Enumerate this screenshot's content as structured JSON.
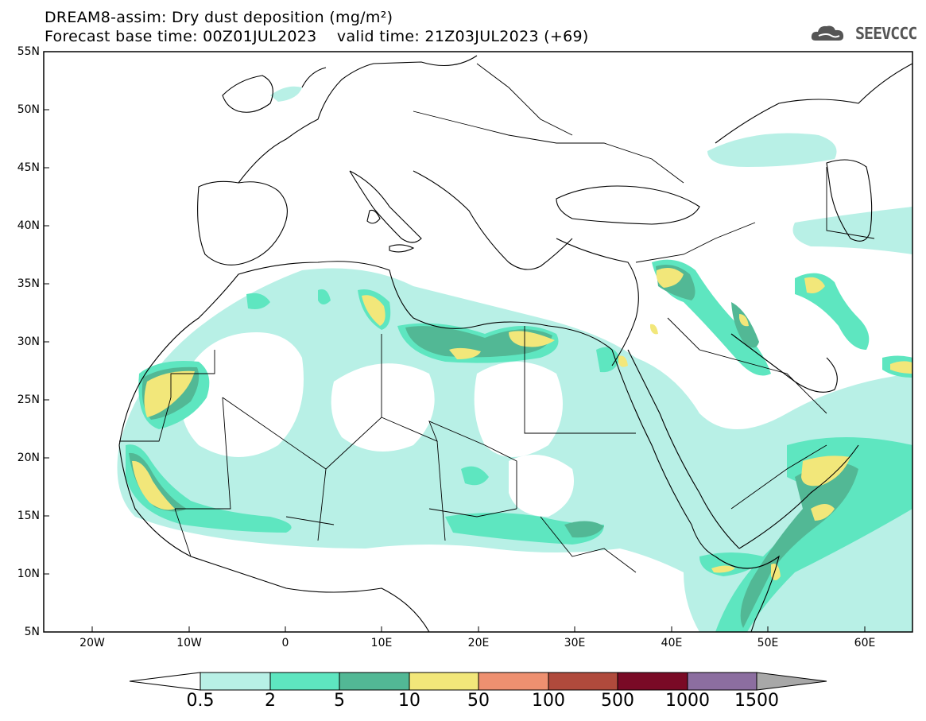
{
  "title": {
    "line1": "DREAM8-assim: Dry dust deposition (mg/m²)",
    "line2": "Forecast base time: 00Z01JUL2023    valid time: 21Z03JUL2023 (+69)"
  },
  "logo": {
    "text": "SEEVCCC",
    "icon": "cloud-icon"
  },
  "axes": {
    "lat_labels": [
      "55N",
      "50N",
      "45N",
      "40N",
      "35N",
      "30N",
      "25N",
      "20N",
      "15N",
      "10N",
      "5N"
    ],
    "lon_labels": [
      "20W",
      "10W",
      "0",
      "10E",
      "20E",
      "30E",
      "40E",
      "50E",
      "60E"
    ]
  },
  "legend": {
    "labels": [
      "0.5",
      "2",
      "5",
      "10",
      "50",
      "100",
      "500",
      "1000",
      "1500"
    ],
    "colors": [
      "#b8f0e6",
      "#5ee6c0",
      "#52b895",
      "#f2e77a",
      "#ee9070",
      "#b04a3c",
      "#7a0a26",
      "#8c6ea0",
      "#a8a8a8"
    ]
  }
}
